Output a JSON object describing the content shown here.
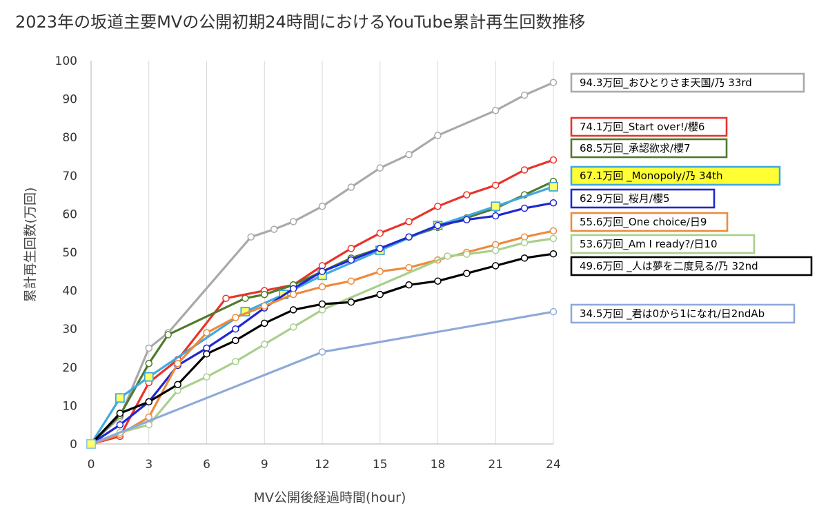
{
  "chart_data": {
    "type": "line",
    "title": "2023年の坂道主要MVの公開初期24時間におけるYouTube累計再生回数推移",
    "xlabel": "MV公開後経過時間(hour)",
    "ylabel": "累計再生回数(万回)",
    "xlim": [
      0,
      24
    ],
    "ylim": [
      0,
      100
    ],
    "xticks": [
      0,
      3,
      6,
      9,
      12,
      15,
      18,
      21,
      24
    ],
    "yticks": [
      0,
      10,
      20,
      30,
      40,
      50,
      60,
      70,
      80,
      90,
      100
    ],
    "grid": "vertical",
    "legend_position": "right",
    "series": [
      {
        "name": "94.3万回_おひとりさま天国/乃 33rd",
        "color": "#a9a9a9",
        "marker": "circle",
        "legend_fill": "#ffffff",
        "x": [
          0,
          1.5,
          3,
          4,
          8.3,
          9.5,
          10.5,
          12,
          13.5,
          15,
          16.5,
          18,
          21,
          22.5,
          24
        ],
        "y": [
          0,
          7,
          25,
          29,
          54,
          56,
          58,
          62,
          67,
          72,
          75.5,
          80.5,
          87,
          91,
          94.3
        ]
      },
      {
        "name": "74.1万回_Start over!/櫻6",
        "color": "#e8332a",
        "marker": "circle",
        "legend_fill": "#ffffff",
        "x": [
          0,
          1.5,
          3,
          4.5,
          7,
          9,
          10.5,
          12,
          13.5,
          15,
          16.5,
          18,
          19.5,
          21,
          22.5,
          24
        ],
        "y": [
          0,
          2,
          16,
          22,
          38,
          40,
          41.5,
          46.5,
          51,
          55,
          58,
          62,
          65,
          67.5,
          71.5,
          74.1
        ]
      },
      {
        "name": "68.5万回_承認欲求/櫻7",
        "color": "#4f7a2b",
        "marker": "circle",
        "legend_fill": "#ffffff",
        "x": [
          0,
          1.5,
          3,
          4,
          8,
          9,
          10.5,
          12,
          13.5,
          15,
          16.5,
          18,
          19.5,
          21,
          22.5,
          24
        ],
        "y": [
          0,
          7.5,
          21,
          28.5,
          38,
          39,
          41.5,
          45,
          48.5,
          51,
          54,
          56.5,
          59,
          61.5,
          65,
          68.5
        ]
      },
      {
        "name": "67.1万回 _Monopoly/乃 34th",
        "color": "#41a9e1",
        "marker": "square",
        "legend_fill": "#ffff33",
        "x": [
          0,
          1.5,
          3,
          8,
          10,
          12,
          15,
          18,
          21,
          24
        ],
        "y": [
          0,
          12,
          17.5,
          34.5,
          39,
          44,
          50.5,
          57,
          62,
          67.1
        ]
      },
      {
        "name": "62.9万回_桜月/櫻5",
        "color": "#1f27d1",
        "marker": "circle",
        "legend_fill": "#ffffff",
        "x": [
          0,
          1.5,
          3,
          4.5,
          6,
          7.5,
          9,
          10.5,
          12,
          13.5,
          15,
          16.5,
          18,
          19.5,
          21,
          22.5,
          24
        ],
        "y": [
          0,
          5,
          11,
          20.5,
          25,
          30,
          35.5,
          40.5,
          45,
          48,
          51,
          54,
          57,
          58.5,
          59.5,
          61.5,
          62.9
        ]
      },
      {
        "name": "55.6万回_One choice/日9",
        "color": "#ee8a3c",
        "marker": "circle",
        "legend_fill": "#ffffff",
        "x": [
          0,
          1.5,
          3,
          4.5,
          6,
          7.5,
          9,
          10.5,
          12,
          13.5,
          15,
          16.5,
          18,
          19.5,
          21,
          22.5,
          24
        ],
        "y": [
          0,
          2.5,
          7,
          21,
          29,
          33,
          36,
          39,
          41,
          42.5,
          45,
          46,
          48,
          50,
          52,
          54,
          55.6
        ]
      },
      {
        "name": "53.6万回_Am I ready?/日10",
        "color": "#a8cf8c",
        "marker": "circle",
        "legend_fill": "#ffffff",
        "x": [
          0,
          1.5,
          3,
          4.5,
          6,
          7.5,
          9,
          10.5,
          12,
          18.5,
          19.5,
          21,
          22.5,
          24
        ],
        "y": [
          0,
          3,
          5,
          14,
          17.5,
          21.5,
          26,
          30.5,
          35,
          49,
          49.5,
          50.5,
          52.5,
          53.6
        ]
      },
      {
        "name": "49.6万回 _人は夢を二度見る/乃 32nd",
        "color": "#000000",
        "marker": "circle",
        "legend_fill": "#ffffff",
        "x": [
          0,
          1.5,
          3,
          4.5,
          6,
          7.5,
          9,
          10.5,
          12,
          13.5,
          15,
          16.5,
          18,
          19.5,
          21,
          22.5,
          24
        ],
        "y": [
          0,
          8,
          11,
          15.5,
          23.5,
          27,
          31.5,
          35,
          36.5,
          37,
          39,
          41.5,
          42.5,
          44.5,
          46.5,
          48.5,
          49.6
        ]
      },
      {
        "name": "34.5万回 _君は0から1になれ/日2ndAb",
        "color": "#8fa9d8",
        "marker": "circle",
        "legend_fill": "#ffffff",
        "x": [
          0,
          12,
          24
        ],
        "y": [
          0,
          24,
          34.5
        ]
      }
    ]
  }
}
